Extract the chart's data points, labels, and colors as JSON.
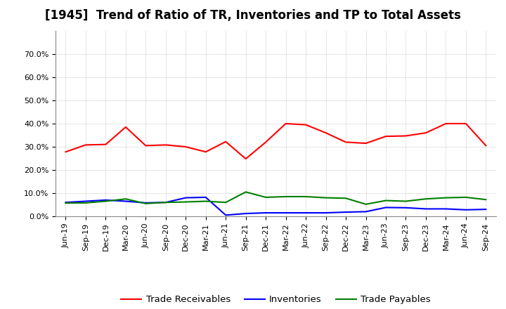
{
  "title": "[1945]  Trend of Ratio of TR, Inventories and TP to Total Assets",
  "x_labels": [
    "Jun-19",
    "Sep-19",
    "Dec-19",
    "Mar-20",
    "Jun-20",
    "Sep-20",
    "Dec-20",
    "Mar-21",
    "Jun-21",
    "Sep-21",
    "Dec-21",
    "Mar-22",
    "Jun-22",
    "Sep-22",
    "Dec-22",
    "Mar-23",
    "Jun-23",
    "Sep-23",
    "Dec-23",
    "Mar-24",
    "Jun-24",
    "Sep-24"
  ],
  "trade_receivables": [
    0.278,
    0.308,
    0.31,
    0.385,
    0.305,
    0.308,
    0.3,
    0.278,
    0.322,
    0.248,
    0.32,
    0.4,
    0.395,
    0.36,
    0.32,
    0.315,
    0.345,
    0.347,
    0.36,
    0.4,
    0.4,
    0.305
  ],
  "inventories": [
    0.06,
    0.065,
    0.07,
    0.065,
    0.058,
    0.06,
    0.08,
    0.082,
    0.005,
    0.012,
    0.015,
    0.015,
    0.015,
    0.015,
    0.018,
    0.02,
    0.038,
    0.037,
    0.032,
    0.032,
    0.028,
    0.03
  ],
  "trade_payables": [
    0.057,
    0.058,
    0.065,
    0.075,
    0.055,
    0.06,
    0.062,
    0.065,
    0.06,
    0.105,
    0.082,
    0.085,
    0.085,
    0.08,
    0.078,
    0.052,
    0.068,
    0.065,
    0.075,
    0.08,
    0.082,
    0.072
  ],
  "tr_color": "#FF0000",
  "inv_color": "#0000FF",
  "tp_color": "#008000",
  "ylim": [
    0.0,
    0.8
  ],
  "yticks": [
    0.0,
    0.1,
    0.2,
    0.3,
    0.4,
    0.5,
    0.6,
    0.7
  ],
  "background_color": "#FFFFFF",
  "plot_bg_color": "#FFFFFF",
  "grid_color": "#AAAAAA",
  "legend_labels": [
    "Trade Receivables",
    "Inventories",
    "Trade Payables"
  ],
  "title_fontsize": 12,
  "tick_fontsize": 8,
  "legend_fontsize": 9.5
}
